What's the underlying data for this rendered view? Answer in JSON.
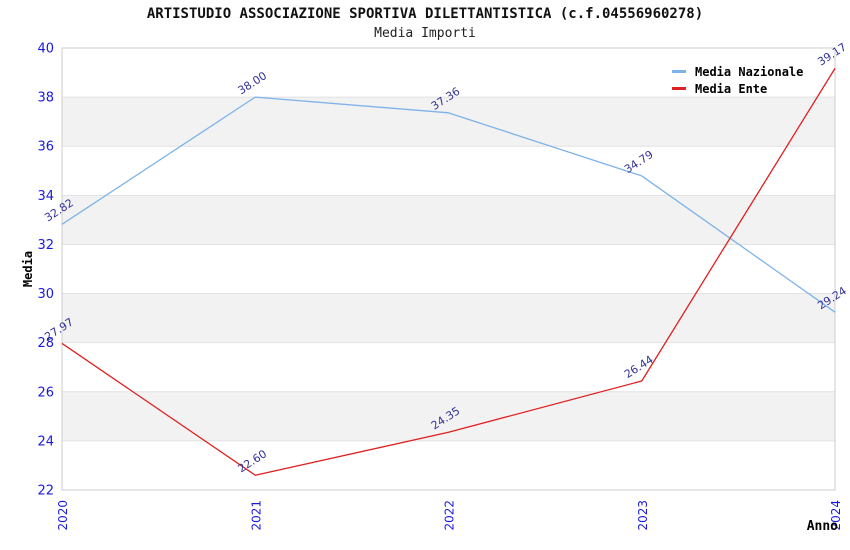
{
  "header": {
    "title": "ARTISTUDIO ASSOCIAZIONE SPORTIVA DILETTANTISTICA (c.f.04556960278)",
    "subtitle": "Media Importi"
  },
  "chart_data": {
    "type": "line",
    "title": "ARTISTUDIO ASSOCIAZIONE SPORTIVA DILETTANTISTICA (c.f.04556960278)",
    "subtitle": "Media Importi",
    "xlabel": "Anno",
    "ylabel": "Media",
    "categories": [
      "2020",
      "2021",
      "2022",
      "2023",
      "2024"
    ],
    "ylim": [
      22,
      40
    ],
    "ytick_step": 2,
    "grid": "horizontal-bands",
    "legend_position": "top-right",
    "point_label_decimals": 2,
    "series": [
      {
        "name": "Media Nazionale",
        "color": "#7db3e8",
        "values": [
          32.82,
          38.0,
          37.36,
          34.79,
          29.24
        ]
      },
      {
        "name": "Media Ente",
        "color": "#e02020",
        "values": [
          27.97,
          22.6,
          24.35,
          26.44,
          39.17
        ]
      }
    ],
    "colors": {
      "tick_label": "#1a1adf",
      "point_label": "#333399",
      "band_fill": "#f2f2f2",
      "grid_line": "#e2e2e2",
      "plot_border": "#cccccc",
      "axis_title": "#000000"
    }
  }
}
